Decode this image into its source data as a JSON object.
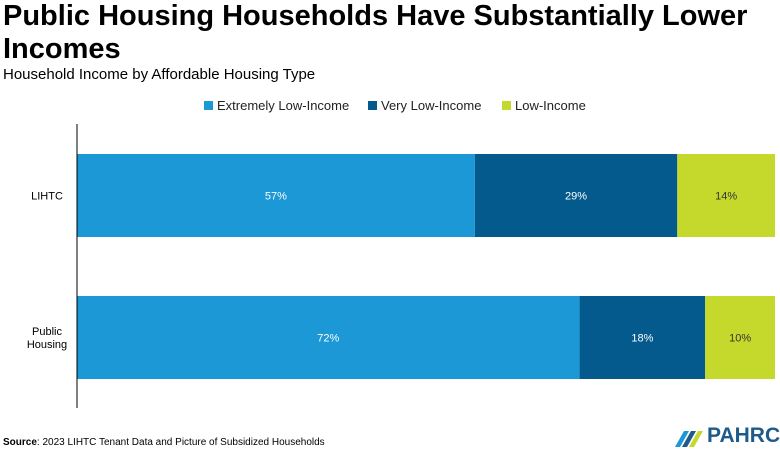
{
  "title": "Public Housing Households Have Substantially Lower Incomes",
  "subtitle": "Household Income by Affordable Housing Type",
  "source_label": "Source",
  "source_text": ": 2023 LIHTC Tenant Data and Picture  of Subsidized Households",
  "logo_text": "PAHRC",
  "logo_tm": "™",
  "colors": {
    "extremely_low": "#1b98d5",
    "very_low": "#045a8d",
    "low": "#c5d92d",
    "axis": "#000000",
    "logo": "#1e5a8a"
  },
  "chart_data": {
    "type": "bar",
    "orientation": "horizontal",
    "stacked": true,
    "percent": true,
    "categories": [
      "LIHTC",
      "Public Housing"
    ],
    "category_lines": [
      [
        "LIHTC"
      ],
      [
        "Public",
        "Housing"
      ]
    ],
    "series": [
      {
        "name": "Extremely Low-Income",
        "values": [
          57,
          72
        ],
        "labels": [
          "57%",
          "72%"
        ],
        "color": "#1b98d5"
      },
      {
        "name": "Very Low-Income",
        "values": [
          29,
          18
        ],
        "labels": [
          "29%",
          "18%"
        ],
        "color": "#045a8d"
      },
      {
        "name": "Low-Income",
        "values": [
          14,
          10
        ],
        "labels": [
          "14%",
          "10%"
        ],
        "color": "#c5d92d"
      }
    ],
    "title": "Public Housing Households Have Substantially Lower Incomes",
    "subtitle": "Household Income by Affordable Housing Type",
    "xlim": [
      0,
      100
    ],
    "grid": false,
    "legend": "top-center"
  }
}
